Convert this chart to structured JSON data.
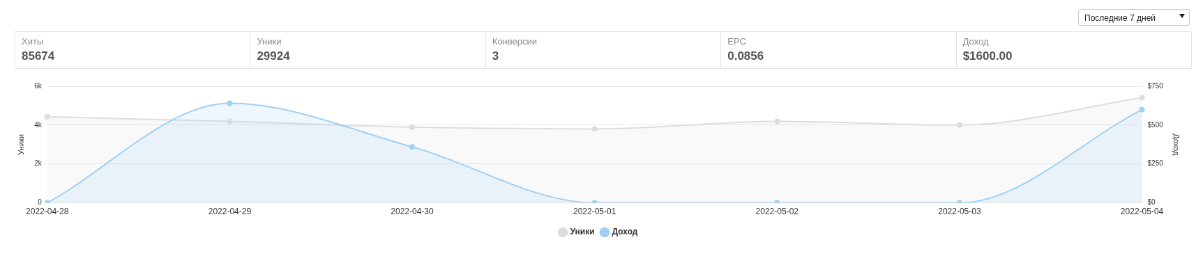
{
  "chart_data": [
    {
      "type": "other",
      "annotations": [
        "Последние 7 дней",
        "Хиты",
        "85674",
        "Уники",
        "29924",
        "Конверсии",
        "3",
        "EPC",
        "0.0856",
        "Доход",
        "$1600.00"
      ]
    },
    {
      "type": "area",
      "categories": [
        "2022-04-28",
        "2022-04-29",
        "2022-04-30",
        "2022-05-01",
        "2022-05-02",
        "2022-05-03",
        "2022-05-04"
      ],
      "series": [
        {
          "name": "Уники",
          "color": "#dddddd",
          "values": [
            4430,
            4190,
            3900,
            3800,
            4190,
            4000,
            5410
          ]
        },
        {
          "name": "Доход",
          "color": "#9fd0f5",
          "axis": "y2",
          "values": [
            0,
            640,
            360,
            0,
            0,
            0,
            600
          ]
        }
      ],
      "ylabel": "Уники",
      "y2label": "Доход",
      "ylim": [
        0,
        6000
      ],
      "yticks": [
        0,
        {
          "value": 2000,
          "label": "2k"
        },
        {
          "value": 4000,
          "label": "4k"
        },
        {
          "value": 6000,
          "label": "6k"
        }
      ],
      "y2lim": [
        0,
        750
      ],
      "y2ticks": [
        {
          "value": 0,
          "label": "$0"
        },
        {
          "value": 250,
          "label": "$250"
        },
        {
          "value": 500,
          "label": "$500"
        },
        {
          "value": 750,
          "label": "$750"
        }
      ],
      "grid": "y",
      "legend": "bottom",
      "marker": "circle",
      "line_style": "solid"
    }
  ]
}
